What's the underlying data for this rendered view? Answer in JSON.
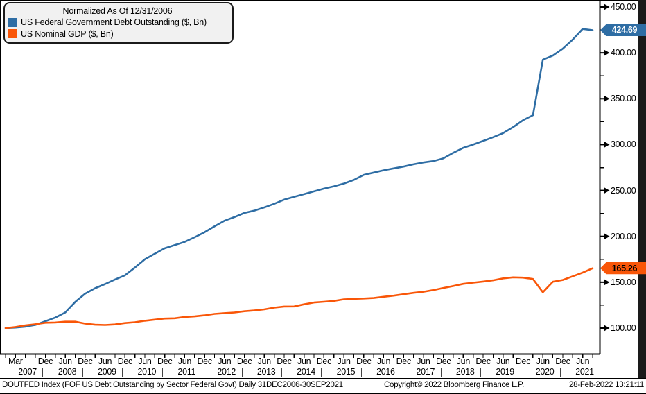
{
  "legend": {
    "title": "Normalized As Of 12/31/2006",
    "series": [
      {
        "label": "US Federal Government Debt Outstanding ($, Bn)",
        "color": "#2e6da4"
      },
      {
        "label": "US Nominal GDP ($, Bn)",
        "color": "#f95608"
      }
    ]
  },
  "colors": {
    "debt_line": "#2e6da4",
    "gdp_line": "#f95608",
    "frame": "#000000",
    "legend_bg": "#f1f1f1",
    "panel_bg": "#ffffff",
    "right_strip": "#1a1a1a"
  },
  "y_axis": {
    "major": [
      {
        "value": 450,
        "label": "450.00"
      },
      {
        "value": 400,
        "label": "400.00"
      },
      {
        "value": 350,
        "label": "350.00"
      },
      {
        "value": 300,
        "label": "300.00"
      },
      {
        "value": 250,
        "label": "250.00"
      },
      {
        "value": 200,
        "label": "200.00"
      },
      {
        "value": 150,
        "label": "150.00"
      },
      {
        "value": 100,
        "label": "100.00"
      }
    ],
    "minor": [
      425,
      375,
      325,
      275,
      225,
      175,
      125
    ]
  },
  "x_axis": {
    "months": [
      {
        "q": 1,
        "label": "Mar"
      },
      {
        "q": 4,
        "label": "Dec"
      },
      {
        "q": 6,
        "label": "Jun"
      },
      {
        "q": 8,
        "label": "Dec"
      },
      {
        "q": 10,
        "label": "Jun"
      },
      {
        "q": 12,
        "label": "Dec"
      },
      {
        "q": 14,
        "label": "Jun"
      },
      {
        "q": 16,
        "label": "Dec"
      },
      {
        "q": 18,
        "label": "Jun"
      },
      {
        "q": 20,
        "label": "Dec"
      },
      {
        "q": 22,
        "label": "Jun"
      },
      {
        "q": 24,
        "label": "Dec"
      },
      {
        "q": 26,
        "label": "Jun"
      },
      {
        "q": 28,
        "label": "Dec"
      },
      {
        "q": 30,
        "label": "Jun"
      },
      {
        "q": 32,
        "label": "Dec"
      },
      {
        "q": 34,
        "label": "Jun"
      },
      {
        "q": 36,
        "label": "Dec"
      },
      {
        "q": 38,
        "label": "Jun"
      },
      {
        "q": 40,
        "label": "Dec"
      },
      {
        "q": 42,
        "label": "Jun"
      },
      {
        "q": 44,
        "label": "Dec"
      },
      {
        "q": 46,
        "label": "Jun"
      },
      {
        "q": 48,
        "label": "Dec"
      },
      {
        "q": 50,
        "label": "Jun"
      },
      {
        "q": 52,
        "label": "Dec"
      },
      {
        "q": 54,
        "label": "Jun"
      },
      {
        "q": 56,
        "label": "Dec"
      },
      {
        "q": 58,
        "label": "Jun"
      }
    ],
    "years": [
      "2007",
      "2008",
      "2009",
      "2010",
      "2011",
      "2012",
      "2013",
      "2014",
      "2015",
      "2016",
      "2017",
      "2018",
      "2019",
      "2020",
      "2021"
    ]
  },
  "footer": {
    "left": "DOUTFED Index (FOF US Debt Outstanding by Sector Federal Govt)  Daily 31DEC2006-30SEP2021",
    "copyright": "Copyright© 2022 Bloomberg Finance L.P.",
    "timestamp": "28-Feb-2022 13:21:11"
  },
  "chart_data": {
    "type": "line",
    "title": "Normalized As Of 12/31/2006",
    "normalization_base": "12/31/2006 = 100",
    "ylim": [
      72,
      455
    ],
    "grid": false,
    "legend_position": "top-left",
    "x": [
      "2006-Q4",
      "2007-Q1",
      "2007-Q2",
      "2007-Q3",
      "2007-Q4",
      "2008-Q1",
      "2008-Q2",
      "2008-Q3",
      "2008-Q4",
      "2009-Q1",
      "2009-Q2",
      "2009-Q3",
      "2009-Q4",
      "2010-Q1",
      "2010-Q2",
      "2010-Q3",
      "2010-Q4",
      "2011-Q1",
      "2011-Q2",
      "2011-Q3",
      "2011-Q4",
      "2012-Q1",
      "2012-Q2",
      "2012-Q3",
      "2012-Q4",
      "2013-Q1",
      "2013-Q2",
      "2013-Q3",
      "2013-Q4",
      "2014-Q1",
      "2014-Q2",
      "2014-Q3",
      "2014-Q4",
      "2015-Q1",
      "2015-Q2",
      "2015-Q3",
      "2015-Q4",
      "2016-Q1",
      "2016-Q2",
      "2016-Q3",
      "2016-Q4",
      "2017-Q1",
      "2017-Q2",
      "2017-Q3",
      "2017-Q4",
      "2018-Q1",
      "2018-Q2",
      "2018-Q3",
      "2018-Q4",
      "2019-Q1",
      "2019-Q2",
      "2019-Q3",
      "2019-Q4",
      "2020-Q1",
      "2020-Q2",
      "2020-Q3",
      "2020-Q4",
      "2021-Q1",
      "2021-Q2",
      "2021-Q3"
    ],
    "series": [
      {
        "name": "US Federal Government Debt Outstanding ($, Bn)",
        "color": "#2e6da4",
        "end_label": "424.69",
        "end_label_text_color": "#ffffff",
        "values": [
          100,
          100.6,
          101.6,
          103.5,
          107.5,
          111.5,
          117,
          128.5,
          137.5,
          143.5,
          148,
          153,
          157.5,
          166,
          175,
          181,
          187,
          190.5,
          194,
          199,
          204.5,
          211,
          217,
          221,
          225.5,
          228,
          231.5,
          235.5,
          240,
          243,
          246,
          249,
          252,
          254.5,
          257.5,
          261.5,
          267,
          269.5,
          272,
          274,
          276,
          278.5,
          280.5,
          282,
          285,
          291,
          296.5,
          300,
          304,
          308,
          312.5,
          319,
          326.5,
          332,
          392.5,
          397,
          404.5,
          414.5,
          426,
          424.69
        ]
      },
      {
        "name": "US Nominal GDP ($, Bn)",
        "color": "#f95608",
        "end_label": "165.26",
        "end_label_text_color": "#000000",
        "values": [
          100,
          101.2,
          103.0,
          104.2,
          105.8,
          106.1,
          107.0,
          107.0,
          104.9,
          103.7,
          103.4,
          104.0,
          105.5,
          106.4,
          108.0,
          109.2,
          110.4,
          110.7,
          112.2,
          112.8,
          113.9,
          115.5,
          116.3,
          117.0,
          118.4,
          119.2,
          120.4,
          122.3,
          123.5,
          123.6,
          125.9,
          127.9,
          128.7,
          129.6,
          131.4,
          131.9,
          132.3,
          132.8,
          134.2,
          135.4,
          136.9,
          138.4,
          139.6,
          141.4,
          143.8,
          145.9,
          148.2,
          149.5,
          150.7,
          152.1,
          154.2,
          155.3,
          155.0,
          153.5,
          139.0,
          150.5,
          152.5,
          156.5,
          160.5,
          165.26
        ]
      }
    ]
  }
}
